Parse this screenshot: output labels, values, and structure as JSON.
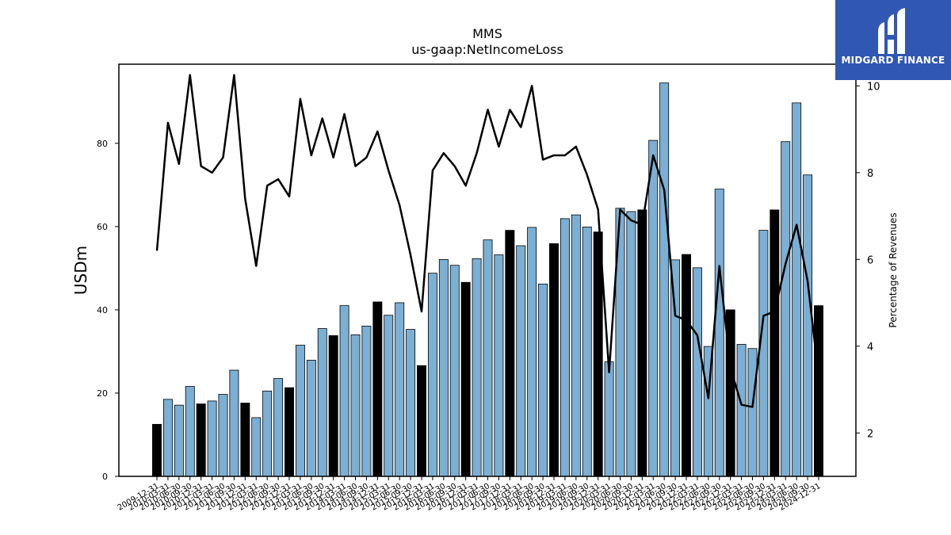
{
  "logo": {
    "text": "MIDGARD FINANCE"
  },
  "chart_data": {
    "type": "bar",
    "title": "MMS",
    "subtitle": "us-gaap:NetIncomeLoss",
    "ylabel": "USDm",
    "y2label": "Percentage of Revenues",
    "ylim": [
      0,
      99
    ],
    "y2lim": [
      1,
      10.5
    ],
    "yticks": [
      0,
      20,
      40,
      60,
      80
    ],
    "y2ticks": [
      2,
      4,
      6,
      8,
      10
    ],
    "bar_colors": {
      "annual": "#000000",
      "quarterly": "#7bafd4"
    },
    "categories": [
      "2009-12-31",
      "2010-03-31",
      "2010-06-30",
      "2010-09-30",
      "2010-12-31",
      "2011-03-31",
      "2011-06-30",
      "2011-09-30",
      "2011-12-31",
      "2012-03-31",
      "2012-06-30",
      "2012-09-30",
      "2012-12-31",
      "2013-03-31",
      "2013-06-30",
      "2013-09-30",
      "2013-12-31",
      "2014-03-31",
      "2014-06-30",
      "2014-09-30",
      "2014-12-31",
      "2015-03-31",
      "2015-06-30",
      "2015-09-30",
      "2015-12-31",
      "2016-03-31",
      "2016-06-30",
      "2016-09-30",
      "2016-12-31",
      "2017-03-31",
      "2017-06-30",
      "2017-09-30",
      "2017-12-31",
      "2018-03-31",
      "2018-06-30",
      "2018-09-30",
      "2018-12-31",
      "2019-03-31",
      "2019-06-30",
      "2019-09-30",
      "2019-12-31",
      "2020-03-31",
      "2020-06-30",
      "2020-09-30",
      "2020-12-31",
      "2021-03-31",
      "2021-06-30",
      "2021-09-30",
      "2021-12-31",
      "2022-03-31",
      "2022-06-30",
      "2022-09-30",
      "2022-12-31",
      "2023-03-31",
      "2023-06-30",
      "2023-09-30",
      "2023-12-31",
      "2024-03-31",
      "2024-06-30",
      "2024-09-30",
      "2024-12-31"
    ],
    "xtick_labels": [
      "2009-12-31",
      "2010-03-31",
      "2010-06-30",
      "2010-09-30",
      "2010-12-31",
      "2011-03-31",
      "2011-06-30",
      "2011-09-30",
      "2011-12-31",
      "2012-03-31",
      "2012-06-30",
      "2012-09-30",
      "2012-12-31",
      "2013-03-31",
      "2013-06-30",
      "2013-09-30",
      "2013-12-31",
      "2014-03-31",
      "2014-06-30",
      "2014-09-30",
      "2014-12-31",
      "2015-03-31",
      "2015-06-30",
      "2015-09-30",
      "2015-12-31",
      "2016-03-31",
      "2016-06-30",
      "2016-09-30",
      "2016-12-31",
      "2017-03-31",
      "2017-06-30",
      "2017-09-30",
      "2017-12-31",
      "2018-03-31",
      "2018-06-30",
      "2018-09-30",
      "2018-12-31",
      "2019-03-31",
      "2019-06-30",
      "2019-09-30",
      "2019-12-31",
      "2020-03-31",
      "2020-06-30",
      "2020-09-30",
      "2020-12-31",
      "2021-03-31",
      "2021-06-30",
      "2021-09-30",
      "2021-12-31",
      "2022-03-31",
      "2022-06-30",
      "2022-09-30",
      "2022-12-31",
      "2023-03-31",
      "2023-06-30",
      "2023-09-30",
      "2023-12-31",
      "2024-03-31",
      "2024-06-30",
      "2024-09-30",
      "2024-12-31"
    ],
    "bar_kind": [
      "annual",
      "quarterly",
      "quarterly",
      "quarterly",
      "annual",
      "quarterly",
      "quarterly",
      "quarterly",
      "annual",
      "quarterly",
      "quarterly",
      "quarterly",
      "annual",
      "quarterly",
      "quarterly",
      "quarterly",
      "annual",
      "quarterly",
      "quarterly",
      "quarterly",
      "annual",
      "quarterly",
      "quarterly",
      "quarterly",
      "annual",
      "quarterly",
      "quarterly",
      "quarterly",
      "annual",
      "quarterly",
      "quarterly",
      "quarterly",
      "annual",
      "quarterly",
      "quarterly",
      "quarterly",
      "annual",
      "quarterly",
      "quarterly",
      "quarterly",
      "annual",
      "quarterly",
      "quarterly",
      "quarterly",
      "annual",
      "quarterly",
      "quarterly",
      "quarterly",
      "annual",
      "quarterly",
      "quarterly",
      "quarterly",
      "annual",
      "quarterly",
      "quarterly",
      "quarterly",
      "annual",
      "quarterly",
      "quarterly",
      "quarterly",
      "annual"
    ],
    "series": [
      {
        "values": [
          12.5,
          18.5,
          17.1,
          21.6,
          17.4,
          18.1,
          19.7,
          25.5,
          17.6,
          14.1,
          20.5,
          23.5,
          21.3,
          31.5,
          27.9,
          35.5,
          33.8,
          41.0,
          34.0,
          36.1,
          41.9,
          38.7,
          41.7,
          35.3,
          26.6,
          48.8,
          52.1,
          50.7,
          46.6,
          52.3,
          56.8,
          53.2,
          59.1,
          55.4,
          59.8,
          46.2,
          55.9,
          61.9,
          62.8,
          59.9,
          58.7,
          27.5,
          64.4,
          63.6,
          64.0,
          80.7,
          94.5,
          52.0,
          53.3,
          50.1,
          31.2,
          69.0,
          40.0,
          31.7,
          30.7,
          59.1,
          64.0,
          80.4,
          89.7,
          72.4,
          41.0
        ]
      },
      {
        "values": [
          6.2,
          9.15,
          8.2,
          10.25,
          8.15,
          8.0,
          8.35,
          10.25,
          7.4,
          5.85,
          7.7,
          7.85,
          7.45,
          9.7,
          8.4,
          9.25,
          8.35,
          9.35,
          8.15,
          8.35,
          8.95,
          8.05,
          7.25,
          6.1,
          4.8,
          8.05,
          8.45,
          8.15,
          7.7,
          8.45,
          9.45,
          8.6,
          9.45,
          9.05,
          10.0,
          8.3,
          8.4,
          8.4,
          8.6,
          7.95,
          7.15,
          3.4,
          7.15,
          6.9,
          6.8,
          8.4,
          7.6,
          4.7,
          4.6,
          4.25,
          2.8,
          5.85,
          3.5,
          2.65,
          2.6,
          4.7,
          4.8,
          5.9,
          6.8,
          5.5,
          3.3
        ]
      }
    ]
  }
}
